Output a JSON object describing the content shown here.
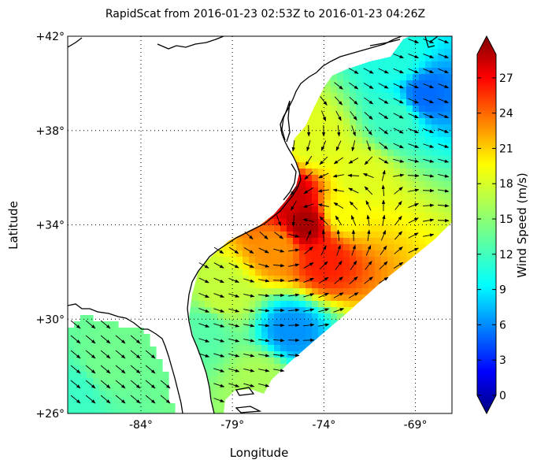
{
  "title": "RapidScat  from 2016-01-23 02:53Z to 2016-01-23 04:26Z",
  "xlabel": "Longitude",
  "ylabel": "Latitude",
  "x_ticks": [
    {
      "lon": -84,
      "label": "-84°"
    },
    {
      "lon": -79,
      "label": "-79°"
    },
    {
      "lon": -74,
      "label": "-74°"
    },
    {
      "lon": -69,
      "label": "-69°"
    }
  ],
  "y_ticks": [
    {
      "lat": 26,
      "label": "+26°"
    },
    {
      "lat": 30,
      "label": "+30°"
    },
    {
      "lat": 34,
      "label": "+34°"
    },
    {
      "lat": 38,
      "label": "+38°"
    },
    {
      "lat": 42,
      "label": "+42°"
    }
  ],
  "colorbar": {
    "label": "Wind Speed (m/s)",
    "min": 0,
    "max": 29,
    "ticks": [
      {
        "value": 0,
        "label": "0"
      },
      {
        "value": 3,
        "label": "3"
      },
      {
        "value": 6,
        "label": "6"
      },
      {
        "value": 9,
        "label": "9"
      },
      {
        "value": 12,
        "label": "12"
      },
      {
        "value": 15,
        "label": "15"
      },
      {
        "value": 18,
        "label": "18"
      },
      {
        "value": 21,
        "label": "21"
      },
      {
        "value": 24,
        "label": "24"
      },
      {
        "value": 27,
        "label": "27"
      }
    ],
    "colormap": "jet",
    "extend": "both"
  },
  "chart_data": {
    "type": "heatmap",
    "subtype": "wind-vector-map",
    "lon_range": [
      -88,
      -67
    ],
    "lat_range": [
      26,
      42
    ],
    "grid": true,
    "grid_style": "dotted",
    "storm_center": {
      "lon": -75.2,
      "lat": 33.9,
      "max_speed": 29
    },
    "field_samples": [
      {
        "lon": -75.0,
        "lat": 34.0,
        "speed": 28
      },
      {
        "lon": -75.8,
        "lat": 35.2,
        "speed": 27
      },
      {
        "lon": -74.0,
        "lat": 32.5,
        "speed": 25
      },
      {
        "lon": -76.5,
        "lat": 33.0,
        "speed": 22
      },
      {
        "lon": -73.0,
        "lat": 34.5,
        "speed": 19
      },
      {
        "lon": -74.5,
        "lat": 37.5,
        "speed": 18
      },
      {
        "lon": -72.0,
        "lat": 36.0,
        "speed": 18
      },
      {
        "lon": -70.0,
        "lat": 38.5,
        "speed": 12
      },
      {
        "lon": -68.5,
        "lat": 39.5,
        "speed": 6
      },
      {
        "lon": -70.0,
        "lat": 41.0,
        "speed": 11
      },
      {
        "lon": -79.5,
        "lat": 31.0,
        "speed": 17
      },
      {
        "lon": -80.5,
        "lat": 29.5,
        "speed": 13
      },
      {
        "lon": -75.8,
        "lat": 29.5,
        "speed": 7
      },
      {
        "lon": -86.0,
        "lat": 28.0,
        "speed": 14
      },
      {
        "lon": -87.5,
        "lat": 27.0,
        "speed": 12
      },
      {
        "lon": -77.5,
        "lat": 27.5,
        "speed": 16
      }
    ]
  }
}
